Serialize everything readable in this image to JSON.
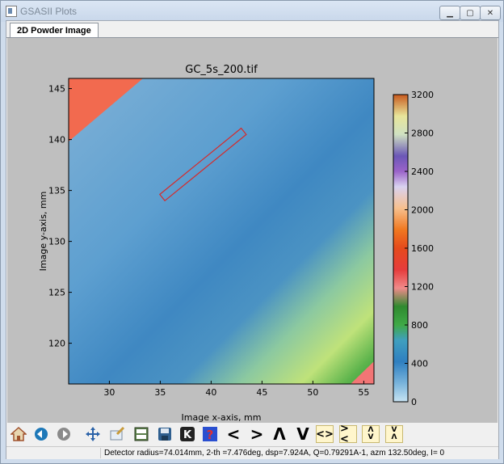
{
  "window": {
    "title": "GSASII Plots"
  },
  "tabs": [
    {
      "label": "2D Powder Image"
    }
  ],
  "plot": {
    "title": "GC_5s_200.tif",
    "xlabel": "Image x-axis, mm",
    "ylabel": "Image y-axis, mm",
    "xticks": [
      "30",
      "35",
      "40",
      "45",
      "50",
      "55"
    ],
    "yticks": [
      "120",
      "125",
      "130",
      "135",
      "140",
      "145"
    ],
    "xlim": [
      26,
      56
    ],
    "ylim": [
      116,
      146
    ],
    "x_tick_values": [
      30,
      35,
      40,
      45,
      50,
      55
    ],
    "y_tick_values": [
      120,
      125,
      130,
      135,
      140,
      145
    ],
    "colorbar_ticks": [
      "0",
      "400",
      "800",
      "1200",
      "1600",
      "2000",
      "2400",
      "2800",
      "3200"
    ],
    "colorbar_range": [
      0,
      3200
    ],
    "mask_strip": {
      "from": [
        35.2,
        134.3
      ],
      "to": [
        43.2,
        140.8
      ]
    }
  },
  "toolbar": {
    "buttons": [
      {
        "name": "home-button",
        "icon": "home-icon"
      },
      {
        "name": "back-button",
        "icon": "back-arrow-icon"
      },
      {
        "name": "forward-button",
        "icon": "forward-arrow-icon"
      },
      {
        "name": "pan-button",
        "icon": "pan-icon"
      },
      {
        "name": "zoom-button",
        "icon": "zoom-rect-icon"
      },
      {
        "name": "subplots-button",
        "icon": "subplots-icon"
      },
      {
        "name": "save-button",
        "icon": "save-icon"
      },
      {
        "name": "key-button",
        "icon": "key-icon"
      },
      {
        "name": "help-button",
        "icon": "help-icon"
      }
    ],
    "arrows": [
      {
        "name": "shift-left-button",
        "label": "<"
      },
      {
        "name": "shift-right-button",
        "label": ">"
      },
      {
        "name": "shift-up-button",
        "label": "Λ"
      },
      {
        "name": "shift-down-button",
        "label": "V"
      },
      {
        "name": "expand-horizontal-button",
        "label": "<>"
      },
      {
        "name": "shrink-horizontal-button",
        "label": "><"
      },
      {
        "name": "expand-vertical-button",
        "label": "Λ\nV"
      },
      {
        "name": "shrink-vertical-button",
        "label": "V\nΛ"
      }
    ]
  },
  "status": {
    "text": "Detector radius=74.014mm, 2-th =7.476deg, dsp=7.924A, Q=0.79291A-1, azm 132.50deg, I=      0"
  },
  "colors": {
    "plot_bg": "#bfbfbf",
    "mask": "#d62a2a",
    "hot": "#f26a4f"
  }
}
